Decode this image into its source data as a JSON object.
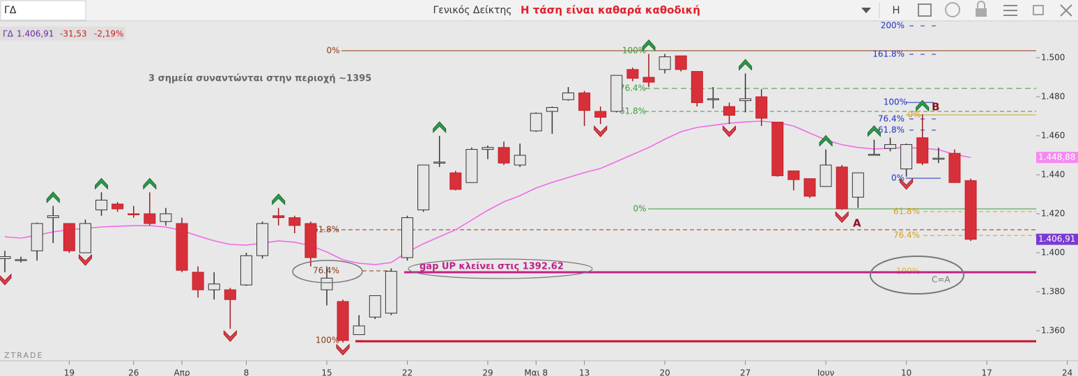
{
  "header": {
    "symbol": "ΓΔ",
    "quote_symbol": "ΓΔ",
    "quote_price": "1.406,91",
    "quote_change": "-31,53",
    "quote_change_pct": "-2,19%"
  },
  "chart_data": {
    "type": "candlestick",
    "title": "Γενικός Δείκτης",
    "subtitle": "Η τάση είναι καθαρά καθοδική",
    "watermark": "ZTRADE",
    "x": [
      0,
      1,
      2,
      3,
      4,
      5,
      6,
      7,
      8,
      9,
      10,
      11,
      12,
      13,
      14,
      15,
      16,
      17,
      18,
      19,
      20,
      21,
      22,
      23,
      24,
      25,
      26,
      27,
      28,
      29,
      30,
      31,
      32,
      33,
      34,
      35,
      36,
      37,
      38,
      39,
      40,
      41,
      42,
      43,
      44,
      45,
      46,
      47,
      48,
      49,
      50,
      51,
      52,
      53,
      54,
      55,
      56,
      57,
      58,
      59,
      60
    ],
    "open": [
      1397,
      1396,
      1401,
      1418,
      1415,
      1400,
      1422,
      1425,
      1420,
      1420,
      1416,
      1415,
      1390,
      1381,
      1381,
      1383.5,
      1398.5,
      1419,
      1418,
      1415,
      1381,
      1375,
      1358,
      1367,
      1369,
      1397.5,
      1422,
      1446,
      1441,
      1436,
      1453,
      1454,
      1445,
      1462.5,
      1472.5,
      1478.5,
      1482,
      1472.5,
      1472.5,
      1494,
      1490,
      1494,
      1501,
      1493,
      1479,
      1475,
      1478,
      1480,
      1467,
      1442,
      1438,
      1434,
      1444,
      1428.5,
      1450,
      1453.5,
      1443,
      1459,
      1448,
      1451,
      1437
    ],
    "high": [
      1401,
      1398,
      1415.5,
      1424,
      1415,
      1417,
      1431,
      1426,
      1424,
      1431,
      1423,
      1418,
      1393,
      1390,
      1382,
      1400,
      1416,
      1423,
      1419,
      1416,
      1393,
      1376,
      1368,
      1378,
      1392,
      1419,
      1445,
      1460,
      1442,
      1454,
      1455,
      1457,
      1456,
      1472,
      1475,
      1485,
      1483,
      1475,
      1491,
      1495,
      1502,
      1502,
      1501,
      1493,
      1485,
      1477,
      1492,
      1484,
      1467,
      1442,
      1438,
      1453,
      1445,
      1441,
      1458,
      1459,
      1456,
      1471,
      1454,
      1453,
      1438
    ],
    "low": [
      1390,
      1395,
      1396,
      1405,
      1400,
      1400,
      1419,
      1421,
      1418,
      1414,
      1414,
      1390,
      1377,
      1376,
      1361,
      1383,
      1397,
      1414,
      1410,
      1393,
      1373,
      1354,
      1358,
      1366,
      1368,
      1396,
      1421,
      1444,
      1432,
      1436,
      1448,
      1445,
      1444,
      1462,
      1461,
      1478,
      1465,
      1466,
      1472,
      1488,
      1485,
      1492,
      1493,
      1475,
      1474,
      1466,
      1472,
      1465,
      1439,
      1432,
      1428,
      1434,
      1422,
      1423,
      1450,
      1452,
      1439,
      1445,
      1446,
      1436,
      1406
    ],
    "close": [
      1398,
      1396.5,
      1415,
      1419,
      1401,
      1415,
      1427,
      1422.5,
      1419.5,
      1415,
      1420,
      1391,
      1381,
      1384,
      1376,
      1398.5,
      1415,
      1418,
      1414,
      1397.5,
      1387,
      1355,
      1362.5,
      1378,
      1390.5,
      1418,
      1445,
      1446.5,
      1432.5,
      1453,
      1454,
      1446,
      1450,
      1471.5,
      1474.5,
      1482,
      1473,
      1469.5,
      1491,
      1489.5,
      1487.5,
      1500.5,
      1494,
      1477,
      1479,
      1470.5,
      1479,
      1469,
      1439.5,
      1437.5,
      1429,
      1445,
      1422.5,
      1441,
      1450.5,
      1455.5,
      1455.5,
      1446,
      1448.5,
      1436,
      1406.91
    ],
    "close_label": "1.406,91",
    "up_color": "#e6e6e6",
    "down_color": "#d8303a",
    "ma": {
      "color": "#f06ae8",
      "values": [
        1408.2,
        1407.5,
        1409,
        1410.7,
        1411.8,
        1412.5,
        1413.2,
        1413.6,
        1413.9,
        1413.9,
        1413.2,
        1411.4,
        1408.6,
        1406.1,
        1404.3,
        1403.9,
        1405,
        1406.1,
        1405.4,
        1403.6,
        1400.4,
        1396.4,
        1394.6,
        1393.9,
        1395,
        1400.4,
        1404.6,
        1408.2,
        1411.8,
        1416.8,
        1421.8,
        1426.1,
        1429.3,
        1433.2,
        1436.1,
        1438.6,
        1441.1,
        1443.2,
        1446.8,
        1450.4,
        1454,
        1458.2,
        1462.1,
        1464.3,
        1465.4,
        1466.4,
        1467.1,
        1467.5,
        1466.8,
        1465,
        1461.4,
        1457.9,
        1455.4,
        1454,
        1453.2,
        1453.6,
        1453.9,
        1453.6,
        1452.9,
        1450.4,
        1448.88
      ],
      "last_label": "1.448,88"
    },
    "xlim": [
      -0.3,
      63.98
    ],
    "xticks": [
      {
        "value": 4,
        "label": "19"
      },
      {
        "value": 8,
        "label": "26"
      },
      {
        "value": 11,
        "label": "Απρ"
      },
      {
        "value": 15,
        "label": "8"
      },
      {
        "value": 20,
        "label": "15"
      },
      {
        "value": 25,
        "label": "22"
      },
      {
        "value": 30,
        "label": "29"
      },
      {
        "value": 33,
        "label": "Μαι 8"
      },
      {
        "value": 36,
        "label": "13"
      },
      {
        "value": 41,
        "label": "20"
      },
      {
        "value": 46,
        "label": "27"
      },
      {
        "value": 51,
        "label": "Ιουν"
      },
      {
        "value": 56,
        "label": "10"
      },
      {
        "value": 61,
        "label": "17"
      },
      {
        "value": 66,
        "label": "24"
      }
    ],
    "ylim": [
      1345,
      1530
    ],
    "yticks": [
      {
        "value": 1360,
        "label": "1.360"
      },
      {
        "value": 1380,
        "label": "1.380"
      },
      {
        "value": 1400,
        "label": "1.400"
      },
      {
        "value": 1420,
        "label": "1.420"
      },
      {
        "value": 1440,
        "label": "1.440"
      },
      {
        "value": 1460,
        "label": "1.460"
      },
      {
        "value": 1480,
        "label": "1.480"
      },
      {
        "value": 1500,
        "label": "1.500"
      }
    ],
    "levels": [
      {
        "label": "0%",
        "value": 1503.6,
        "color": "#8b3a10"
      },
      {
        "label": "61.8%",
        "value": 1411.8,
        "color": "#8b3a10"
      },
      {
        "label": "76.4%",
        "value": 1390.7,
        "color": "#8b3a10"
      },
      {
        "label": "100%",
        "value": 1355,
        "color": "#8b3a10"
      },
      {
        "label": "100%",
        "value": 1503.6,
        "color": "#3a9a3a"
      },
      {
        "label": "76.4%",
        "value": 1484.3,
        "color": "#3a9a3a"
      },
      {
        "label": "61.8%",
        "value": 1472.5,
        "color": "#3a9a3a"
      },
      {
        "label": "0%",
        "value": 1422.5,
        "color": "#3a9a3a"
      },
      {
        "label": "200%",
        "value": 1516.4,
        "color": "#2030c0"
      },
      {
        "label": "161.8%",
        "value": 1501.8,
        "color": "#2030c0"
      },
      {
        "label": "100%",
        "value": 1477.1,
        "color": "#2030c0"
      },
      {
        "label": "76.4%",
        "value": 1468.6,
        "color": "#2030c0"
      },
      {
        "label": "61.8%",
        "value": 1462.9,
        "color": "#2030c0"
      },
      {
        "label": "0%",
        "value": 1438.2,
        "color": "#2030c0"
      },
      {
        "label": "0%",
        "value": 1470.7,
        "color": "#d4a020"
      },
      {
        "label": "61.8%",
        "value": 1421.1,
        "color": "#d4a020"
      },
      {
        "label": "76.4%",
        "value": 1408.9,
        "color": "#d4a020"
      },
      {
        "label": "100%",
        "value": 1390.4,
        "color": "#e0b040"
      }
    ],
    "lines": [
      {
        "value": 1390,
        "color": "#c0208a"
      },
      {
        "value": 1354.6,
        "color": "#c8102e"
      }
    ],
    "annotations": [
      "3 σημεία συναντώνται στην περιοχή ~1395",
      "gap UP κλείνει στις  1392.62",
      "C=A",
      "A",
      "B"
    ]
  }
}
